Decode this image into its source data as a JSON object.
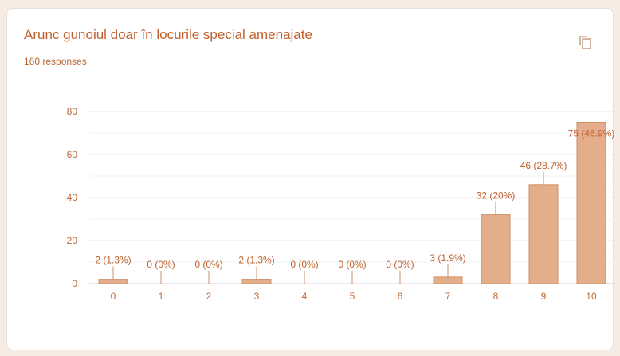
{
  "card": {
    "title": "Arunc gunoiul doar în locurile special amenajate",
    "responses": "160 responses",
    "copy_icon": "copy-icon"
  },
  "colors": {
    "bar": "#e4ad8b",
    "bar_stroke": "#cf8e66",
    "grid": "#e9e9e9",
    "accent": "#c0602c"
  },
  "chart_data": {
    "type": "bar",
    "categories": [
      "0",
      "1",
      "2",
      "3",
      "4",
      "5",
      "6",
      "7",
      "8",
      "9",
      "10"
    ],
    "values": [
      2,
      0,
      0,
      2,
      0,
      0,
      0,
      3,
      32,
      46,
      75
    ],
    "data_labels": [
      "2 (1.3%)",
      "0 (0%)",
      "0 (0%)",
      "2 (1.3%)",
      "0 (0%)",
      "0 (0%)",
      "0 (0%)",
      "3 (1.9%)",
      "32 (20%)",
      "46 (28.7%)",
      "75 (46.9%)"
    ],
    "yticks": [
      0,
      20,
      40,
      60,
      80
    ],
    "ylim": [
      0,
      80
    ],
    "grid": true,
    "legend": "none"
  }
}
